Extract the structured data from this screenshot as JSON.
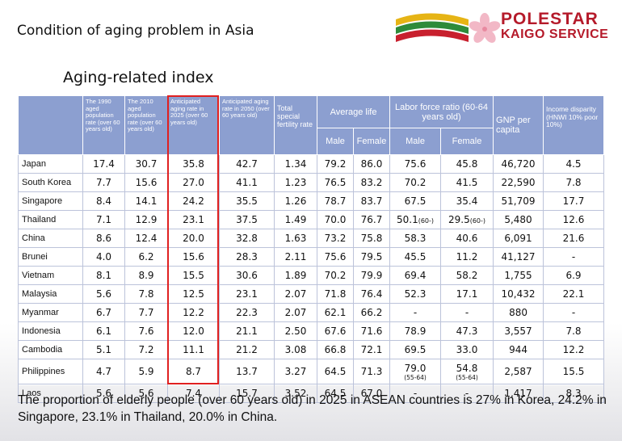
{
  "slide_title": "Condition of aging problem in Asia",
  "brand": {
    "line1": "POLESTAR",
    "line2": "KAIGO SERVICE"
  },
  "subtitle": "Aging-related index",
  "headers": {
    "c1990": "The 1990 aged population rate (over 60 years old)",
    "c2010": "The 2010 aged population rate (over 60 years old)",
    "c2025": "Anticipated aging rate in 2025 (over 60 years old)",
    "c2050": "Anticipated aging rate in 2050 (over 60 years old)",
    "fertility": "Total special fertility rate",
    "life": "Average life",
    "labor": "Labor force ratio (60-64 years old)",
    "gnp": "GNP per capita",
    "income": "Income disparity (HNWI 10% poor 10%)",
    "male": "Male",
    "female": "Female"
  },
  "rows": [
    {
      "country": "Japan",
      "y1990": "17.4",
      "y2010": "30.7",
      "y2025": "35.8",
      "y2050": "42.7",
      "fert": "1.34",
      "lifeM": "79.2",
      "lifeF": "86.0",
      "labM": "75.6",
      "labF": "45.8",
      "gnp": "46,720",
      "inc": "4.5"
    },
    {
      "country": "South Korea",
      "y1990": "7.7",
      "y2010": "15.6",
      "y2025": "27.0",
      "y2050": "41.1",
      "fert": "1.23",
      "lifeM": "76.5",
      "lifeF": "83.2",
      "labM": "70.2",
      "labF": "41.5",
      "gnp": "22,590",
      "inc": "7.8"
    },
    {
      "country": "Singapore",
      "y1990": "8.4",
      "y2010": "14.1",
      "y2025": "24.2",
      "y2050": "35.5",
      "fert": "1.26",
      "lifeM": "78.7",
      "lifeF": "83.7",
      "labM": "67.5",
      "labF": "35.4",
      "gnp": "51,709",
      "inc": "17.7"
    },
    {
      "country": "Thailand",
      "y1990": "7.1",
      "y2010": "12.9",
      "y2025": "23.1",
      "y2050": "37.5",
      "fert": "1.49",
      "lifeM": "70.0",
      "lifeF": "76.7",
      "labM": "50.1",
      "labMnote": "(60-)",
      "labF": "29.5",
      "labFnote": "(60-)",
      "gnp": "5,480",
      "inc": "12.6"
    },
    {
      "country": "China",
      "y1990": "8.6",
      "y2010": "12.4",
      "y2025": "20.0",
      "y2050": "32.8",
      "fert": "1.63",
      "lifeM": "73.2",
      "lifeF": "75.8",
      "labM": "58.3",
      "labF": "40.6",
      "gnp": "6,091",
      "inc": "21.6"
    },
    {
      "country": "Brunei",
      "y1990": "4.0",
      "y2010": "6.2",
      "y2025": "15.6",
      "y2050": "28.3",
      "fert": "2.11",
      "lifeM": "75.6",
      "lifeF": "79.5",
      "labM": "45.5",
      "labF": "11.2",
      "gnp": "41,127",
      "inc": "-"
    },
    {
      "country": "Vietnam",
      "y1990": "8.1",
      "y2010": "8.9",
      "y2025": "15.5",
      "y2050": "30.6",
      "fert": "1.89",
      "lifeM": "70.2",
      "lifeF": "79.9",
      "labM": "69.4",
      "labF": "58.2",
      "gnp": "1,755",
      "inc": "6.9"
    },
    {
      "country": "Malaysia",
      "y1990": "5.6",
      "y2010": "7.8",
      "y2025": "12.5",
      "y2050": "23.1",
      "fert": "2.07",
      "lifeM": "71.8",
      "lifeF": "76.4",
      "labM": "52.3",
      "labF": "17.1",
      "gnp": "10,432",
      "inc": "22.1"
    },
    {
      "country": "Myanmar",
      "y1990": "6.7",
      "y2010": "7.7",
      "y2025": "12.2",
      "y2050": "22.3",
      "fert": "2.07",
      "lifeM": "62.1",
      "lifeF": "66.2",
      "labM": "-",
      "labF": "-",
      "gnp": "880",
      "inc": "-"
    },
    {
      "country": "Indonesia",
      "y1990": "6.1",
      "y2010": "7.6",
      "y2025": "12.0",
      "y2050": "21.1",
      "fert": "2.50",
      "lifeM": "67.6",
      "lifeF": "71.6",
      "labM": "78.9",
      "labF": "47.3",
      "gnp": "3,557",
      "inc": "7.8"
    },
    {
      "country": "Cambodia",
      "y1990": "5.1",
      "y2010": "7.2",
      "y2025": "11.1",
      "y2050": "21.2",
      "fert": "3.08",
      "lifeM": "66.8",
      "lifeF": "72.1",
      "labM": "69.5",
      "labF": "33.0",
      "gnp": "944",
      "inc": "12.2"
    },
    {
      "country": "Philippines",
      "y1990": "4.7",
      "y2010": "5.9",
      "y2025": "8.7",
      "y2050": "13.7",
      "fert": "3.27",
      "lifeM": "64.5",
      "lifeF": "71.3",
      "labM": "79.0",
      "labMnote": "(55-64)",
      "labF": "54.8",
      "labFnote": "(55-64)",
      "gnp": "2,587",
      "inc": "15.5"
    },
    {
      "country": "Laos",
      "y1990": "5.6",
      "y2010": "5.6",
      "y2025": "7.4",
      "y2050": "15.7",
      "fert": "3.52",
      "lifeM": "64.5",
      "lifeF": "67.0",
      "labM": "-",
      "labF": "-",
      "gnp": "1,417",
      "inc": "8.3"
    }
  ],
  "caption": "The proportion of elderly people (over 60 years old) in 2025 in ASEAN countries is 27% in Korea, 24.2% in Singapore, 23.1% in Thailand, 20.0% in China.",
  "colors": {
    "header": "#8c9fd0",
    "highlight": "#e02020",
    "brand": "#b51a2a"
  }
}
